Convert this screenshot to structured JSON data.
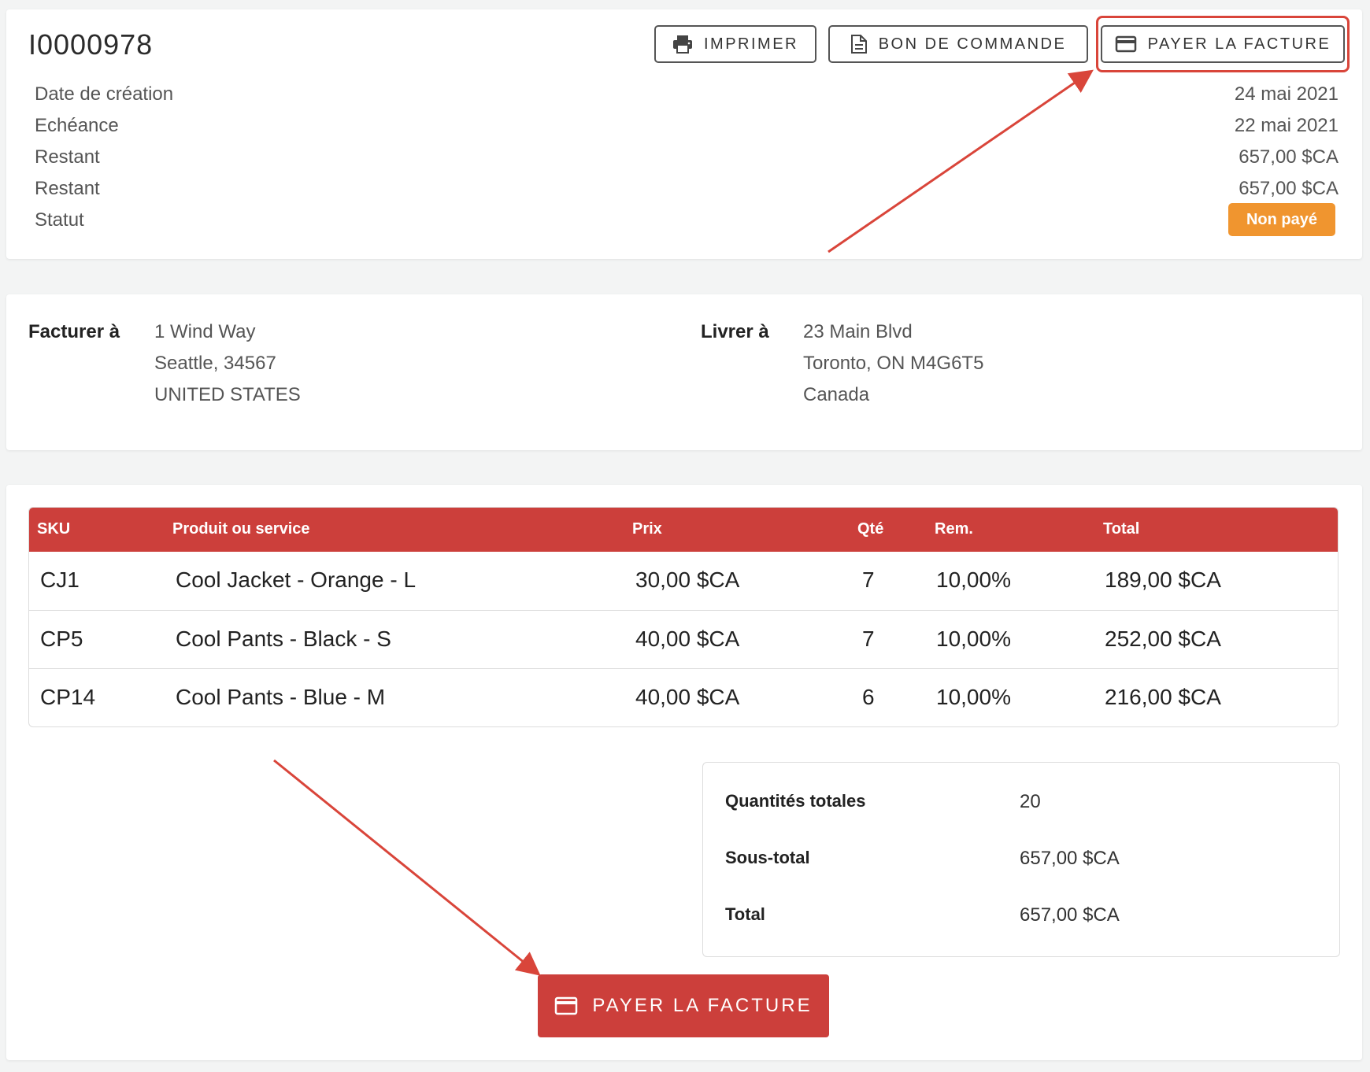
{
  "invoice": {
    "id": "I0000978",
    "buttons": {
      "print": "IMPRIMER",
      "purchase_order": "BON DE COMMANDE",
      "pay": "PAYER LA FACTURE"
    },
    "meta": [
      {
        "label": "Date de création",
        "value": "24 mai 2021"
      },
      {
        "label": "Echéance",
        "value": "22 mai 2021"
      },
      {
        "label": "Restant",
        "value": "657,00 $CA"
      },
      {
        "label": "Restant",
        "value": "657,00 $CA"
      },
      {
        "label": "Statut",
        "value": ""
      }
    ],
    "status_badge": {
      "text": "Non payé",
      "color": "#f0952f"
    }
  },
  "addresses": {
    "bill_to": {
      "label": "Facturer à",
      "lines": [
        "1 Wind Way",
        "Seattle, 34567",
        "UNITED STATES"
      ]
    },
    "ship_to": {
      "label": "Livrer à",
      "lines": [
        "23 Main Blvd",
        "Toronto, ON M4G6T5",
        "Canada"
      ]
    }
  },
  "table": {
    "headers": [
      "SKU",
      "Produit ou service",
      "Prix",
      "Qté",
      "Rem.",
      "Total"
    ],
    "rows": [
      [
        "CJ1",
        "Cool Jacket - Orange - L",
        "30,00 $CA",
        "7",
        "10,00%",
        "189,00 $CA"
      ],
      [
        "CP5",
        "Cool Pants - Black - S",
        "40,00 $CA",
        "7",
        "10,00%",
        "252,00 $CA"
      ],
      [
        "CP14",
        "Cool Pants - Blue - M",
        "40,00 $CA",
        "6",
        "10,00%",
        "216,00 $CA"
      ]
    ],
    "header_color": "#cc3f3b"
  },
  "totals": [
    {
      "label": "Quantités totales",
      "value": "20"
    },
    {
      "label": "Sous-total",
      "value": "657,00 $CA"
    },
    {
      "label": "Total",
      "value": "657,00 $CA"
    }
  ],
  "primary_button": {
    "label": "PAYER LA FACTURE",
    "color": "#cc3f3b"
  },
  "annotation_color": "#d9453a",
  "icons": {
    "print": "printer-icon",
    "document": "document-icon",
    "card": "credit-card-icon"
  }
}
